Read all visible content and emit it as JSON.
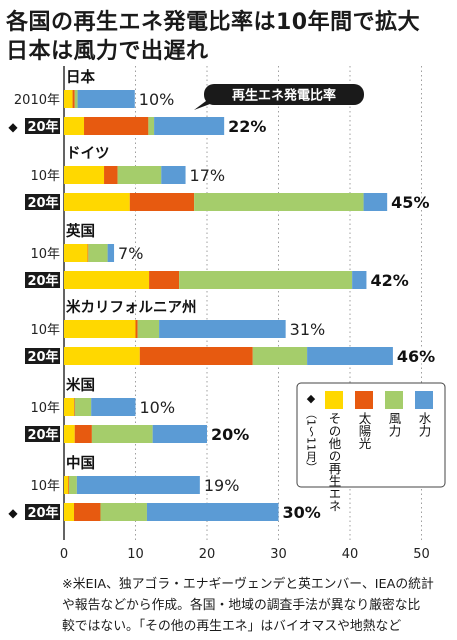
{
  "header": {
    "title_line1": "各国の再生エネ発電比率は10年間で拡大",
    "title_line2": "日本は風力で出遅れ"
  },
  "chart_data": {
    "type": "bar",
    "orientation": "horizontal",
    "stacked": true,
    "xlim": [
      0,
      50
    ],
    "xticks": [
      "0",
      "10",
      "20",
      "30",
      "40",
      "50"
    ],
    "grid": true,
    "callout": "再生エネ発電比率",
    "legend": {
      "items": [
        "その他の再生エネ",
        "太陽光",
        "風力",
        "水力"
      ],
      "note_marker": "◆",
      "note": "（1〜11月）",
      "colors": [
        "#ffd800",
        "#e75a10",
        "#a5cd6b",
        "#5b9bd5"
      ]
    },
    "countries": [
      {
        "name": "日本",
        "rows": [
          {
            "year": "2010年",
            "values": [
              1.2,
              0.3,
              0.4,
              8.0
            ],
            "total": "10%",
            "bold": false
          },
          {
            "year": "20年",
            "values": [
              2.8,
              9.0,
              0.8,
              9.8
            ],
            "total": "22%",
            "bold": true,
            "marker": "◆"
          }
        ]
      },
      {
        "name": "ドイツ",
        "rows": [
          {
            "year": "10年",
            "values": [
              5.6,
              1.9,
              6.1,
              3.4
            ],
            "total": "17%",
            "bold": false
          },
          {
            "year": "20年",
            "values": [
              9.2,
              9.0,
              23.7,
              3.3
            ],
            "total": "45%",
            "bold": true
          }
        ]
      },
      {
        "name": "英国",
        "rows": [
          {
            "year": "10年",
            "values": [
              3.3,
              0.1,
              2.7,
              0.9
            ],
            "total": "7%",
            "bold": false
          },
          {
            "year": "20年",
            "values": [
              11.9,
              4.2,
              24.2,
              2.0
            ],
            "total": "42%",
            "bold": true
          }
        ]
      },
      {
        "name": "米カリフォルニア州",
        "rows": [
          {
            "year": "10年",
            "values": [
              10.0,
              0.3,
              3.0,
              17.7
            ],
            "total": "31%",
            "bold": false
          },
          {
            "year": "20年",
            "values": [
              10.6,
              15.8,
              7.6,
              12.0
            ],
            "total": "46%",
            "bold": true
          }
        ]
      },
      {
        "name": "米国",
        "rows": [
          {
            "year": "10年",
            "values": [
              1.4,
              0.1,
              2.3,
              6.2
            ],
            "total": "10%",
            "bold": false
          },
          {
            "year": "20年",
            "values": [
              1.5,
              2.4,
              8.5,
              7.6
            ],
            "total": "20%",
            "bold": true
          }
        ]
      },
      {
        "name": "中国",
        "rows": [
          {
            "year": "10年",
            "values": [
              0.6,
              0.1,
              1.1,
              17.2
            ],
            "total": "19%",
            "bold": false
          },
          {
            "year": "20年",
            "values": [
              1.4,
              3.7,
              6.5,
              18.4
            ],
            "total": "30%",
            "bold": true,
            "marker": "◆"
          }
        ]
      }
    ]
  },
  "footnote": {
    "line1": "※米EIA、独アゴラ・エナギーヴェンデと英エンバー、IEAの統計",
    "line2": "や報告などから作成。各国・地域の調査手法が異なり厳密な比",
    "line3": "較ではない。「その他の再生エネ」はバイオマスや地熱など"
  }
}
